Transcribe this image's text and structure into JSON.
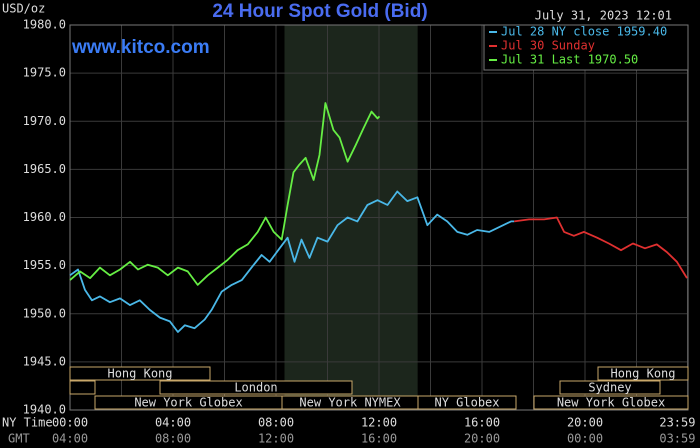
{
  "chart_data": {
    "type": "line",
    "title": "24 Hour Spot Gold (Bid)",
    "unit": "USD/oz",
    "timestamp": "July 31, 2023 12:01",
    "site": "www.kitco.com",
    "x_row_label": "NY Time",
    "x2_row_label": "GMT",
    "xlim": [
      0,
      24
    ],
    "ylim": [
      1940,
      1980
    ],
    "yticks": [
      {
        "value": 1940,
        "label": "1940.0"
      },
      {
        "value": 1945,
        "label": "1945.0"
      },
      {
        "value": 1950,
        "label": "1950.0"
      },
      {
        "value": 1955,
        "label": "1955.0"
      },
      {
        "value": 1960,
        "label": "1960.0"
      },
      {
        "value": 1965,
        "label": "1965.0"
      },
      {
        "value": 1970,
        "label": "1970.0"
      },
      {
        "value": 1975,
        "label": "1975.0"
      },
      {
        "value": 1980,
        "label": "1980.0"
      }
    ],
    "xticks": [
      {
        "value": 0,
        "label": "00:00"
      },
      {
        "value": 4,
        "label": "04:00"
      },
      {
        "value": 8,
        "label": "08:00"
      },
      {
        "value": 12,
        "label": "12:00"
      },
      {
        "value": 16,
        "label": "16:00"
      },
      {
        "value": 20,
        "label": "20:00"
      },
      {
        "value": 23.98,
        "label": "23:59"
      }
    ],
    "x2_tick_labels": [
      "04:00",
      "08:00",
      "12:00",
      "16:00",
      "20:00",
      "00:00",
      "03:59"
    ],
    "xminor_ticks": [
      2,
      6,
      10,
      14,
      18,
      22
    ],
    "grid": true,
    "shaded_span": [
      8.33,
      13.5
    ],
    "sessions": [
      "Hong Kong",
      "London",
      "New York Globex",
      "New York NYMEX",
      "NY Globex",
      "Hong Kong",
      "Sydney",
      "New York Globex"
    ],
    "series": [
      {
        "name": "Jul 28 NY close 1959.40",
        "color": "#4ab8e8",
        "x": [
          0,
          0.31,
          0.58,
          0.85,
          1.16,
          1.55,
          1.94,
          2.33,
          2.71,
          3.1,
          3.49,
          3.88,
          4.19,
          4.46,
          4.84,
          5.23,
          5.5,
          5.89,
          6.28,
          6.67,
          7.05,
          7.44,
          7.75,
          8.14,
          8.45,
          8.72,
          8.99,
          9.3,
          9.61,
          10,
          10.39,
          10.78,
          11.16,
          11.55,
          11.94,
          12.33,
          12.71,
          13.1,
          13.49,
          13.88,
          14.26,
          14.65,
          15.04,
          15.43,
          15.81,
          16.28,
          16.74,
          17.13,
          17.25
        ],
        "values": [
          1954.0,
          1954.6,
          1952.5,
          1951.4,
          1951.8,
          1951.2,
          1951.6,
          1950.9,
          1951.4,
          1950.4,
          1949.6,
          1949.2,
          1948.1,
          1948.8,
          1948.5,
          1949.4,
          1950.4,
          1952.3,
          1953.0,
          1953.5,
          1954.8,
          1956.1,
          1955.4,
          1956.8,
          1957.9,
          1955.4,
          1957.7,
          1955.8,
          1957.9,
          1957.5,
          1959.2,
          1960.0,
          1959.6,
          1961.3,
          1961.8,
          1961.3,
          1962.7,
          1961.7,
          1962.1,
          1959.2,
          1960.3,
          1959.6,
          1958.5,
          1958.2,
          1958.7,
          1958.5,
          1959.1,
          1959.6,
          1959.6
        ]
      },
      {
        "name": "Jul 30 Sunday",
        "color": "#e03030",
        "x": [
          17.25,
          17.83,
          18.41,
          18.91,
          19.19,
          19.57,
          19.96,
          20.47,
          20.93,
          21.4,
          21.86,
          22.33,
          22.79,
          23.18,
          23.57,
          23.96
        ],
        "values": [
          1959.6,
          1959.8,
          1959.8,
          1960.0,
          1958.5,
          1958.1,
          1958.5,
          1957.9,
          1957.3,
          1956.6,
          1957.3,
          1956.8,
          1957.2,
          1956.4,
          1955.4,
          1953.7
        ]
      },
      {
        "name": "Jul 31 Last 1970.50",
        "color": "#66ee44",
        "x": [
          0,
          0.39,
          0.78,
          1.16,
          1.55,
          1.94,
          2.33,
          2.64,
          3.02,
          3.41,
          3.8,
          4.19,
          4.57,
          4.96,
          5.35,
          5.74,
          6.12,
          6.51,
          6.9,
          7.29,
          7.6,
          7.91,
          8.22,
          8.45,
          8.68,
          8.91,
          9.15,
          9.46,
          9.69,
          9.92,
          10.23,
          10.47,
          10.78,
          11.09,
          11.4,
          11.71,
          11.94,
          12.02
        ],
        "values": [
          1953.5,
          1954.4,
          1953.7,
          1954.8,
          1954.0,
          1954.6,
          1955.4,
          1954.6,
          1955.1,
          1954.8,
          1954.0,
          1954.8,
          1954.4,
          1953.0,
          1954.0,
          1954.8,
          1955.6,
          1956.6,
          1957.2,
          1958.5,
          1960.0,
          1958.5,
          1957.7,
          1961.3,
          1964.7,
          1965.5,
          1966.2,
          1963.9,
          1966.5,
          1971.9,
          1969.1,
          1968.3,
          1965.8,
          1967.5,
          1969.3,
          1971.0,
          1970.3,
          1970.5
        ]
      }
    ]
  }
}
